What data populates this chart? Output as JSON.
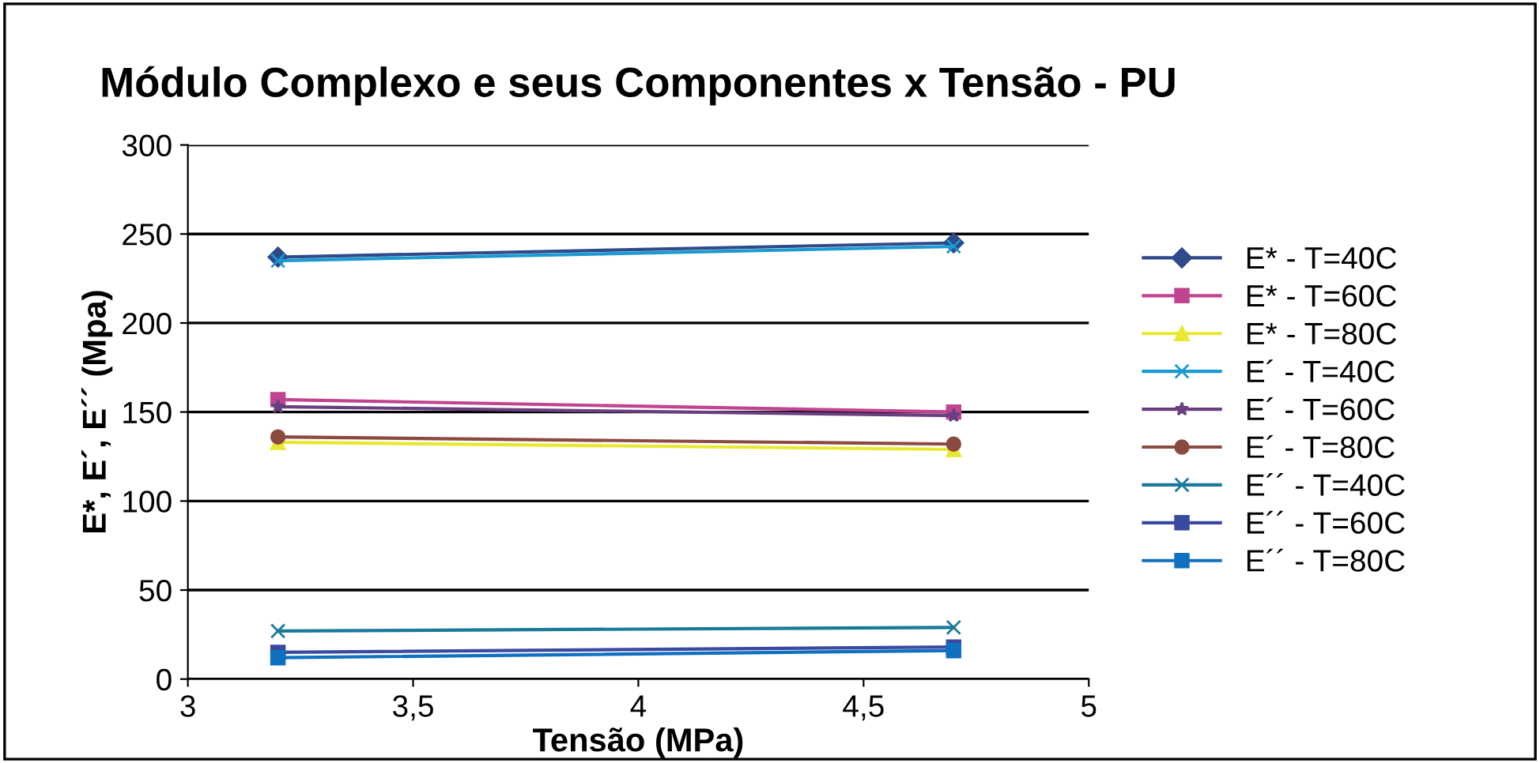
{
  "chart_data": {
    "type": "line",
    "title": "Módulo Complexo e seus Componentes x Tensão - PU",
    "xlabel": "Tensão (MPa)",
    "ylabel": "E*, E´, E´´ (Mpa)",
    "xlim": [
      3,
      5
    ],
    "xticks": [
      3,
      {
        "value": 3.5,
        "label": "3,5"
      },
      4,
      {
        "value": 4.5,
        "label": "4,5"
      },
      5
    ],
    "x": [
      3.2,
      4.7
    ],
    "ylim": [
      0,
      300
    ],
    "yticks": [
      0,
      50,
      100,
      150,
      200,
      250,
      300
    ],
    "grid": "y",
    "legend": "right",
    "series": [
      {
        "name": "E* - T=40C",
        "color": "#2e4a8a",
        "marker": "diamond",
        "values": [
          237,
          245
        ]
      },
      {
        "name": "E* - T=60C",
        "color": "#c0448f",
        "marker": "square",
        "values": [
          157,
          150
        ]
      },
      {
        "name": "E* - T=80C",
        "color": "#e8e830",
        "marker": "triangle",
        "values": [
          133,
          129
        ]
      },
      {
        "name": "E´ - T=40C",
        "color": "#1a9ad0",
        "marker": "cross",
        "values": [
          235,
          243
        ]
      },
      {
        "name": "E´ - T=60C",
        "color": "#6a3f80",
        "marker": "star",
        "values": [
          153,
          148
        ]
      },
      {
        "name": "E´ - T=80C",
        "color": "#8b4a40",
        "marker": "circle",
        "values": [
          136,
          132
        ]
      },
      {
        "name": "E´´ - T=40C",
        "color": "#1a7a9a",
        "marker": "cross",
        "values": [
          27,
          29
        ]
      },
      {
        "name": "E´´ - T=60C",
        "color": "#3a4aa0",
        "marker": "square",
        "values": [
          15,
          18
        ]
      },
      {
        "name": "E´´ - T=80C",
        "color": "#1070c0",
        "marker": "square",
        "values": [
          12,
          16
        ]
      }
    ]
  }
}
